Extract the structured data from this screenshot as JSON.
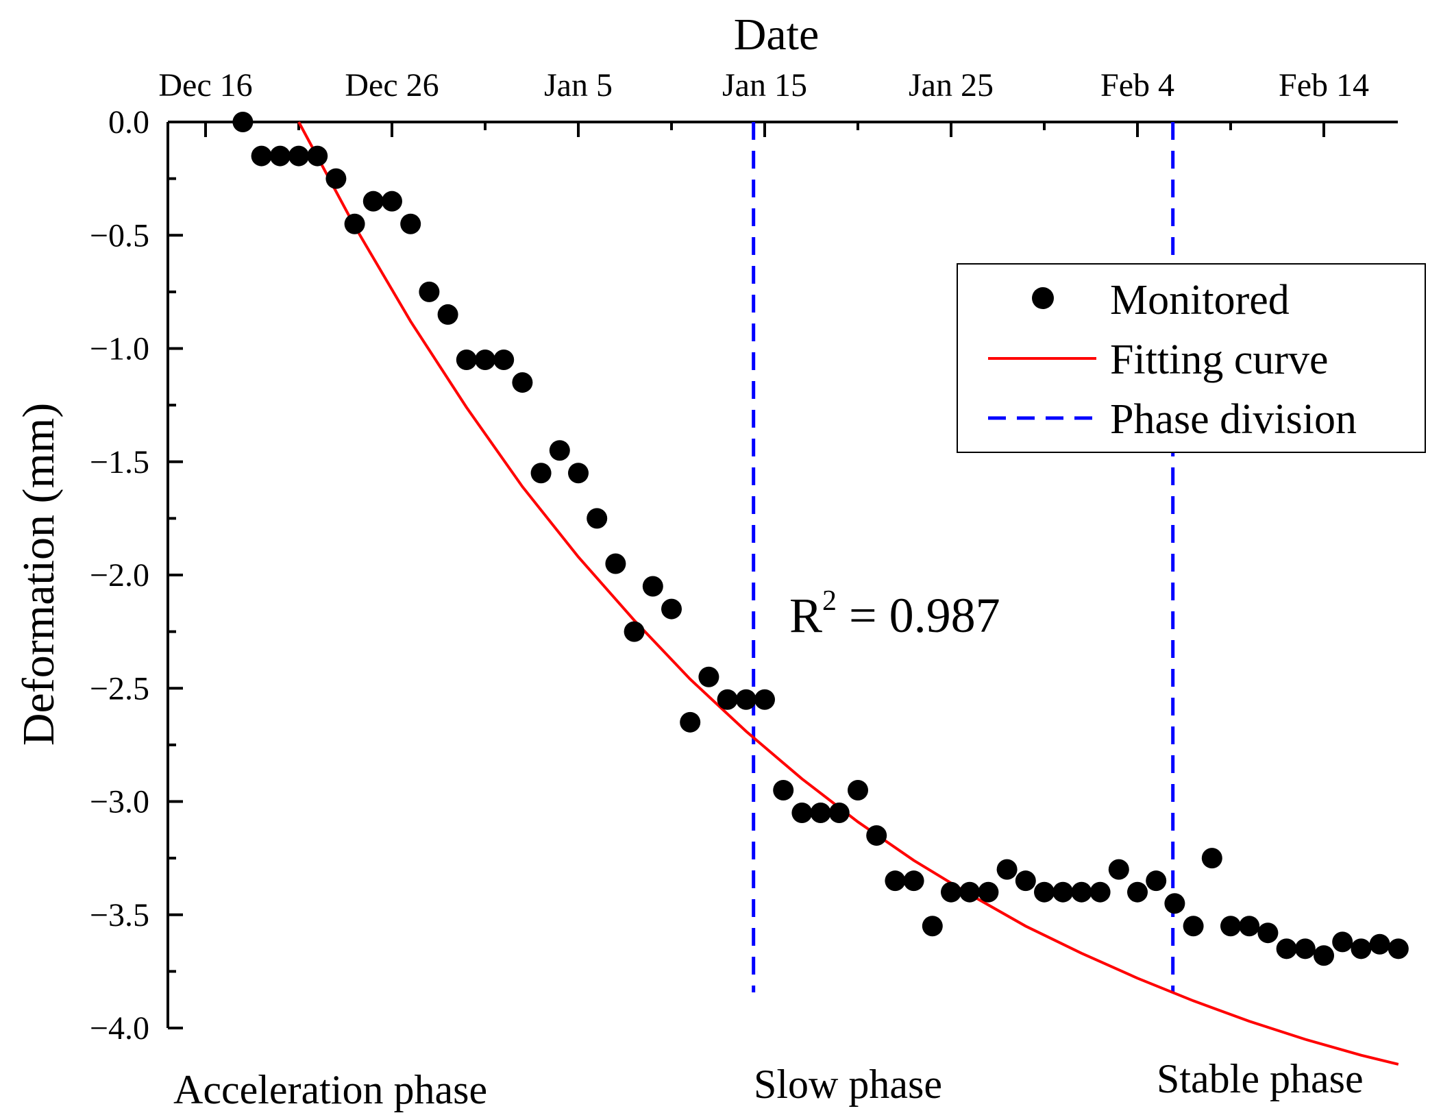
{
  "chart_data": {
    "type": "scatter",
    "xlabel": "Date",
    "ylabel": "Deformation (mm)",
    "x_axis_position": "top",
    "x_unit": "days since Dec 16",
    "xlim": [
      0,
      66
    ],
    "ylim": [
      -4.0,
      0.0
    ],
    "x_ticks": [
      {
        "x": 0,
        "label": "Dec 16"
      },
      {
        "x": 10,
        "label": "Dec 26"
      },
      {
        "x": 20,
        "label": "Jan 5"
      },
      {
        "x": 30,
        "label": "Jan 15"
      },
      {
        "x": 40,
        "label": "Jan 25"
      },
      {
        "x": 50,
        "label": "Feb 4"
      },
      {
        "x": 60,
        "label": "Feb 14"
      }
    ],
    "y_ticks": [
      {
        "y": 0.0,
        "label": "0.0"
      },
      {
        "y": -0.5,
        "label": "−0.5"
      },
      {
        "y": -1.0,
        "label": "−1.0"
      },
      {
        "y": -1.5,
        "label": "−1.5"
      },
      {
        "y": -2.0,
        "label": "−2.0"
      },
      {
        "y": -2.5,
        "label": "−2.5"
      },
      {
        "y": -3.0,
        "label": "−3.0"
      },
      {
        "y": -3.5,
        "label": "−3.5"
      },
      {
        "y": -4.0,
        "label": "−4.0"
      }
    ],
    "series": [
      {
        "name": "Monitored",
        "kind": "scatter",
        "color": "#000000",
        "x": [
          2,
          3,
          4,
          5,
          6,
          7,
          8,
          9,
          10,
          11,
          12,
          13,
          14,
          15,
          16,
          17,
          18,
          19,
          20,
          21,
          22,
          23,
          24,
          25,
          26,
          27,
          28,
          29,
          30,
          31,
          32,
          33,
          34,
          35,
          36,
          37,
          38,
          39,
          40,
          41,
          42,
          43,
          44,
          45,
          46,
          47,
          48,
          49,
          50,
          51,
          52,
          53,
          54,
          55,
          56,
          57,
          58,
          59,
          60,
          61,
          62,
          63,
          64
        ],
        "y": [
          0.0,
          -0.15,
          -0.15,
          -0.15,
          -0.15,
          -0.25,
          -0.45,
          -0.35,
          -0.35,
          -0.45,
          -0.75,
          -0.85,
          -1.05,
          -1.05,
          -1.05,
          -1.15,
          -1.55,
          -1.45,
          -1.55,
          -1.75,
          -1.95,
          -2.25,
          -2.05,
          -2.15,
          -2.65,
          -2.45,
          -2.55,
          -2.55,
          -2.55,
          -2.95,
          -3.05,
          -3.05,
          -3.05,
          -2.95,
          -3.15,
          -3.35,
          -3.35,
          -3.55,
          -3.4,
          -3.4,
          -3.4,
          -3.3,
          -3.35,
          -3.4,
          -3.4,
          -3.4,
          -3.4,
          -3.3,
          -3.4,
          -3.35,
          -3.45,
          -3.55,
          -3.25,
          -3.55,
          -3.55,
          -3.58,
          -3.65,
          -3.65,
          -3.68,
          -3.62,
          -3.65,
          -3.63,
          -3.65
        ]
      },
      {
        "name": "Fitting curve",
        "kind": "line",
        "color": "#ff0000",
        "x": [
          5,
          8,
          11,
          14,
          17,
          20,
          23,
          26,
          29,
          32,
          35,
          38,
          41,
          44,
          47,
          50,
          53,
          56,
          59,
          62,
          64
        ],
        "y": [
          0.0,
          -0.46,
          -0.88,
          -1.26,
          -1.61,
          -1.92,
          -2.2,
          -2.46,
          -2.69,
          -2.9,
          -3.09,
          -3.26,
          -3.41,
          -3.55,
          -3.67,
          -3.78,
          -3.88,
          -3.97,
          -4.05,
          -4.12,
          -4.16
        ]
      },
      {
        "name": "Phase division",
        "kind": "vline-dashed",
        "color": "#0000ff",
        "x": [
          29.4,
          51.9
        ]
      }
    ],
    "annotations": {
      "r2_base": "R",
      "r2_sup": "2",
      "r2_value": " = 0.987",
      "phases": [
        "Acceleration phase",
        "Slow phase",
        "Stable phase"
      ]
    },
    "legend": {
      "position": "top-right",
      "entries": [
        "Monitored",
        "Fitting curve",
        "Phase division"
      ]
    },
    "colors": {
      "points": "#000000",
      "fit": "#ff0000",
      "divider": "#0000ff"
    }
  }
}
